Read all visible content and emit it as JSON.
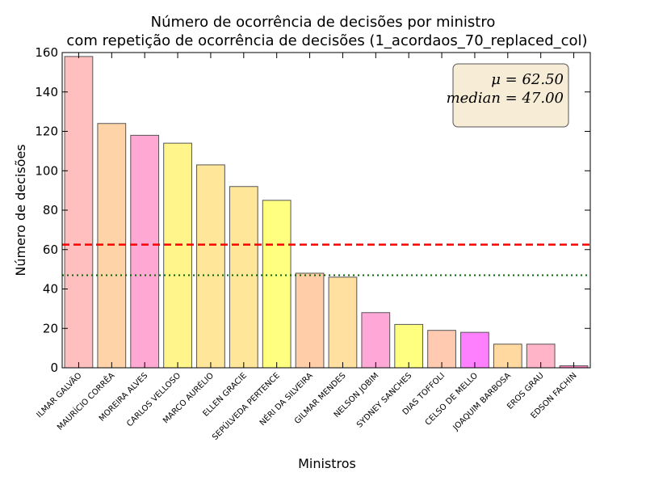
{
  "chart_data": {
    "type": "bar",
    "title": [
      "Número de ocorrência de decisões por ministro",
      "com repetição de ocorrência de decisões (1_acordaos_70_replaced_col)"
    ],
    "xlabel": "Ministros",
    "ylabel": "Número de decisões",
    "ylim": [
      0,
      160
    ],
    "yticks": [
      0,
      20,
      40,
      60,
      80,
      100,
      120,
      140,
      160
    ],
    "categories": [
      "ILMAR GALVÃO",
      "MAURÍCIO CORRÊA",
      "MOREIRA ALVES",
      "CARLOS VELLOSO",
      "MARCO AURÉLIO",
      "ELLEN GRACIE",
      "SEPÚLVEDA PERTENCE",
      "NÉRI DA SILVEIRA",
      "GILMAR MENDES",
      "NELSON JOBIM",
      "SYDNEY SANCHES",
      "DIAS TOFFOLI",
      "CELSO DE MELLO",
      "JOAQUIM BARBOSA",
      "EROS GRAU",
      "EDSON FACHIN"
    ],
    "values": [
      158,
      124,
      118,
      114,
      103,
      92,
      85,
      48,
      46,
      28,
      22,
      19,
      18,
      12,
      12,
      1
    ],
    "colors": [
      "#ffbfbf",
      "#ffd3a8",
      "#ffa8d3",
      "#fff58a",
      "#ffe699",
      "#ffe699",
      "#ffff80",
      "#ffcda8",
      "#ffe0a0",
      "#ffa8d8",
      "#ffff80",
      "#ffcab0",
      "#ff80ff",
      "#ffd9a0",
      "#ffb4c8",
      "#ff80c0"
    ],
    "mean": 62.5,
    "median": 47.0,
    "mean_color": "#ff0000",
    "median_color": "#006400",
    "stats_box": {
      "mean_label": "μ = 62.50",
      "median_label": "median = 47.00",
      "placement": "top-right",
      "background": "#f7ecd6"
    }
  }
}
